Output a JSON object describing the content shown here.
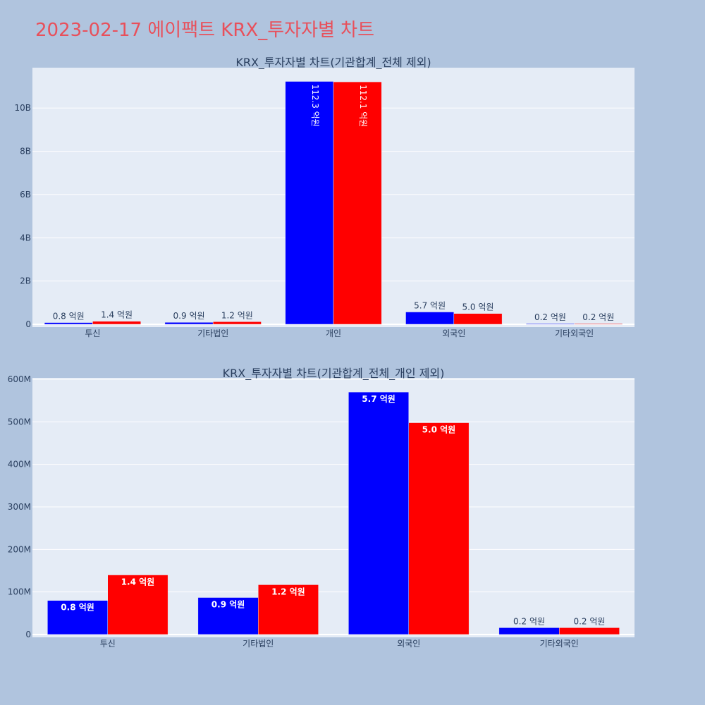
{
  "title": "2023-02-17 에이팩트 KRX_투자자별 차트",
  "colors": {
    "series_a": "#0000ff",
    "series_b": "#ff0000",
    "plot_bg": "#e5ecf6",
    "page_bg": "#b0c4de"
  },
  "chart_data": [
    {
      "type": "bar",
      "title": "KRX_투자자별 차트(기관합계_전체 제외)",
      "categories": [
        "투신",
        "기타법인",
        "개인",
        "외국인",
        "기타외국인"
      ],
      "series": [
        {
          "values": [
            80000000,
            90000000,
            11230000000,
            570000000,
            20000000
          ],
          "labels": [
            "0.8 억원",
            "0.9 억원",
            "112.3 억원",
            "5.7 억원",
            "0.2 억원"
          ]
        },
        {
          "values": [
            140000000,
            120000000,
            11210000000,
            500000000,
            20000000
          ],
          "labels": [
            "1.4 억원",
            "1.2 억원",
            "112.1 억원",
            "5.0 억원",
            "0.2 억원"
          ]
        }
      ],
      "ylim": [
        0,
        11800000000
      ],
      "yticks": [
        0,
        2000000000,
        4000000000,
        6000000000,
        8000000000,
        10000000000
      ],
      "ytick_labels": [
        "0",
        "2B",
        "4B",
        "6B",
        "8B",
        "10B"
      ],
      "grid": true
    },
    {
      "type": "bar",
      "title": "KRX_투자자별 차트(기관합계_전체_개인 제외)",
      "categories": [
        "투신",
        "기타법인",
        "외국인",
        "기타외국인"
      ],
      "series": [
        {
          "values": [
            80000000,
            87000000,
            570000000,
            16000000
          ],
          "labels": [
            "0.8 억원",
            "0.9 억원",
            "5.7 억원",
            "0.2 억원"
          ]
        },
        {
          "values": [
            140000000,
            117000000,
            498000000,
            16000000
          ],
          "labels": [
            "1.4 억원",
            "1.2 억원",
            "5.0 억원",
            "0.2 억원"
          ]
        }
      ],
      "ylim": [
        0,
        600000000
      ],
      "yticks": [
        0,
        100000000,
        200000000,
        300000000,
        400000000,
        500000000,
        600000000
      ],
      "ytick_labels": [
        "0",
        "100M",
        "200M",
        "300M",
        "400M",
        "500M",
        "600M"
      ],
      "grid": true
    }
  ]
}
